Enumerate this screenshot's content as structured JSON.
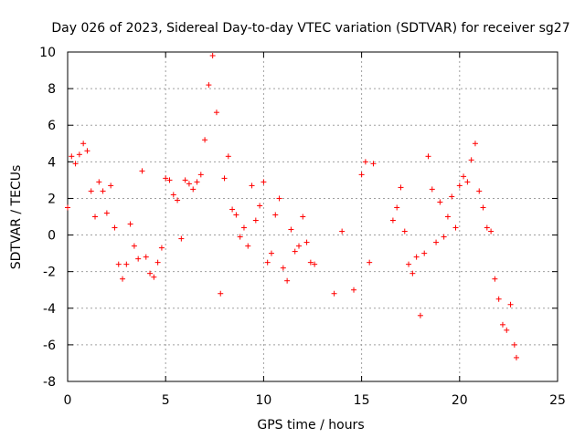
{
  "chart_data": {
    "type": "scatter",
    "title": "Day 026 of 2023, Sidereal Day-to-day VTEC variation (SDTVAR) for receiver sg27",
    "xlabel": "GPS time / hours",
    "ylabel": "SDTVAR / TECUs",
    "xlim": [
      0,
      25
    ],
    "ylim": [
      -8,
      10
    ],
    "xticks": [
      "0",
      "5",
      "10",
      "15",
      "20",
      "25"
    ],
    "yticks": [
      "-8",
      "-6",
      "-4",
      "-2",
      "0",
      "2",
      "4",
      "6",
      "8",
      "10"
    ],
    "grid": true,
    "marker": "plus",
    "color": "#ff0000",
    "series": [
      {
        "name": "SDTVAR",
        "x": [
          0.0,
          0.2,
          0.4,
          0.6,
          0.8,
          1.0,
          1.2,
          1.4,
          1.6,
          1.8,
          2.0,
          2.2,
          2.4,
          2.6,
          2.8,
          3.0,
          3.2,
          3.4,
          3.6,
          3.8,
          4.0,
          4.2,
          4.4,
          4.6,
          4.8,
          5.0,
          5.2,
          5.4,
          5.6,
          5.8,
          6.0,
          6.2,
          6.4,
          6.6,
          6.8,
          7.0,
          7.2,
          7.4,
          7.6,
          7.8,
          8.0,
          8.2,
          8.4,
          8.6,
          8.8,
          9.0,
          9.2,
          9.4,
          9.6,
          9.8,
          10.0,
          10.2,
          10.4,
          10.6,
          10.8,
          11.0,
          11.2,
          11.4,
          11.6,
          11.8,
          12.0,
          12.2,
          12.4,
          12.6,
          13.6,
          14.0,
          14.6,
          15.0,
          15.2,
          15.4,
          15.6,
          16.6,
          16.8,
          17.0,
          17.2,
          17.4,
          17.6,
          17.8,
          18.0,
          18.2,
          18.4,
          18.6,
          18.8,
          19.0,
          19.2,
          19.4,
          19.6,
          19.8,
          20.0,
          20.2,
          20.4,
          20.6,
          20.8,
          21.0,
          21.2,
          21.4,
          21.6,
          21.8,
          22.0,
          22.2,
          22.4,
          22.6,
          22.8,
          22.9
        ],
        "y": [
          1.5,
          4.3,
          3.9,
          4.4,
          5.0,
          4.6,
          2.4,
          1.0,
          2.9,
          2.4,
          1.2,
          2.7,
          0.4,
          -1.6,
          -2.4,
          -1.6,
          0.6,
          -0.6,
          -1.3,
          3.5,
          -1.2,
          -2.1,
          -2.3,
          -1.5,
          -0.7,
          3.1,
          3.0,
          2.2,
          1.9,
          -0.2,
          3.0,
          2.8,
          2.5,
          2.9,
          3.3,
          5.2,
          8.2,
          9.8,
          6.7,
          -3.2,
          3.1,
          4.3,
          1.4,
          1.1,
          -0.1,
          0.4,
          -0.6,
          2.7,
          0.8,
          1.6,
          2.9,
          -1.5,
          -1.0,
          1.1,
          2.0,
          -1.8,
          -2.5,
          0.3,
          -0.9,
          -0.6,
          1.0,
          -0.4,
          -1.5,
          -1.6,
          -3.2,
          0.2,
          -3.0,
          3.3,
          4.0,
          -1.5,
          3.9,
          0.8,
          1.5,
          2.6,
          0.2,
          -1.6,
          -2.1,
          -1.2,
          -4.4,
          -1.0,
          4.3,
          2.5,
          -0.4,
          1.8,
          -0.1,
          1.0,
          2.1,
          0.4,
          2.7,
          3.2,
          2.9,
          4.1,
          5.0,
          2.4,
          1.5,
          0.4,
          0.2,
          -2.4,
          -3.5,
          -4.9,
          -5.2,
          -3.8,
          -6.0,
          -6.7
        ]
      }
    ]
  }
}
